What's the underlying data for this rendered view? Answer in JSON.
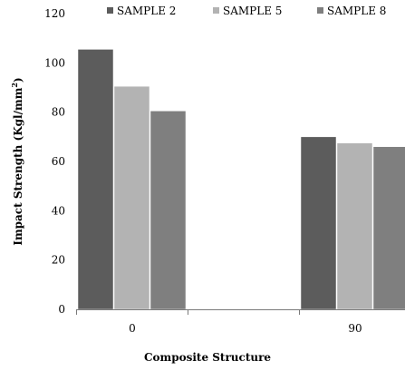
{
  "chart_data": {
    "type": "bar",
    "categories": [
      "0",
      "90"
    ],
    "series": [
      {
        "name": "SAMPLE 2",
        "values": [
          105.5,
          70
        ],
        "color": "#5c5c5c"
      },
      {
        "name": "SAMPLE 5",
        "values": [
          90.5,
          67.5
        ],
        "color": "#b3b3b3"
      },
      {
        "name": "SAMPLE 8",
        "values": [
          80.5,
          66
        ],
        "color": "#7f7f7f"
      }
    ],
    "xlabel": "Composite Structure",
    "ylabel_main": "Impact Strength (Kgl/mm",
    "ylabel_sup": "2",
    "ylabel_end": ")",
    "ylim": [
      0,
      120
    ],
    "yticks": [
      "0",
      "20",
      "40",
      "60",
      "80",
      "100",
      "120"
    ],
    "grid": false,
    "legend_position": "top"
  }
}
